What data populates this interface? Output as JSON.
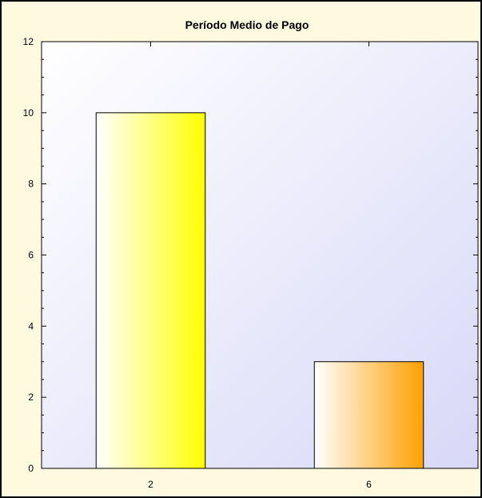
{
  "chart_data": {
    "type": "bar",
    "title": "Período Medio de Pago",
    "categories": [
      "2",
      "6"
    ],
    "values": [
      10,
      3
    ],
    "xlabel": "",
    "ylabel": "",
    "ylim": [
      0,
      12
    ],
    "yticks": [
      0,
      2,
      4,
      6,
      8,
      10,
      12
    ],
    "grid": false,
    "bar_colors": [
      {
        "from": "#ffffff",
        "to": "#ffff00"
      },
      {
        "from": "#ffffff",
        "to": "#ffa000"
      }
    ],
    "plot_background": {
      "from": "#ffffff",
      "to": "#d8d8f8"
    },
    "frame_background": "#fff9e0"
  }
}
